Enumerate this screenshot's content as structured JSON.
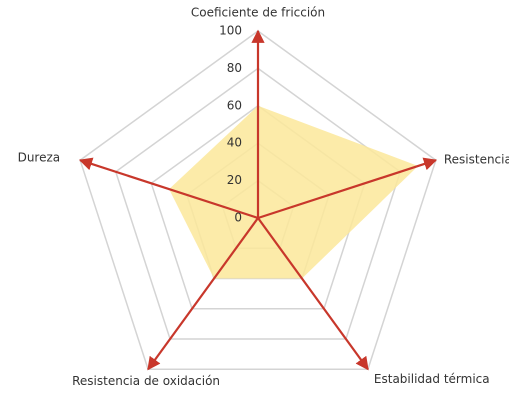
{
  "chart_data": {
    "type": "radar",
    "categories": [
      "Coeficiente de fricción",
      "Resistencia",
      "Estabilidad térmica",
      "Resistencia de oxidación",
      "Dureza"
    ],
    "values": [
      60,
      90,
      40,
      40,
      50
    ],
    "color": "#fce89a",
    "ylim": [
      0,
      100
    ],
    "yticks": [
      0,
      20,
      40,
      60,
      80,
      100
    ],
    "grid": true
  }
}
